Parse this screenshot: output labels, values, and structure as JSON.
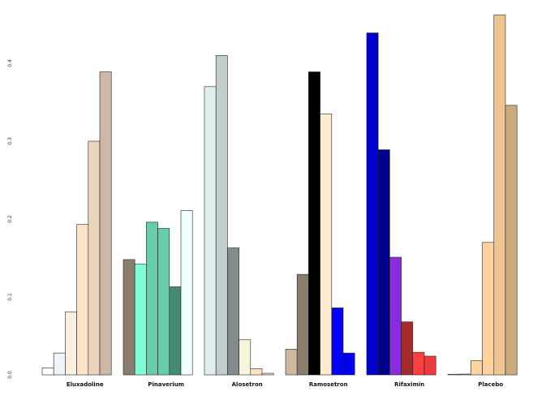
{
  "chart_data": {
    "type": "bar",
    "title": "",
    "xlabel": "",
    "ylabel": "",
    "ylim": [
      0,
      0.46
    ],
    "yticks": [
      0.0,
      0.1,
      0.2,
      0.3,
      0.4
    ],
    "ytick_labels": [
      "0.0",
      "0.1",
      "0.2",
      "0.3",
      "0.4"
    ],
    "legend": "none",
    "grid": false,
    "groups": [
      {
        "name": "Eluxadoline",
        "values": [
          0.009,
          0.028,
          0.081,
          0.193,
          0.3,
          0.389
        ],
        "colors": [
          "#FFFFFF",
          "#EEF4FC",
          "#FBEFDF",
          "#FDE4C8",
          "#ECD4BC",
          "#CDB8A8"
        ]
      },
      {
        "name": "Pinaverium",
        "values": [
          0.148,
          0.142,
          0.196,
          0.188,
          0.113,
          0.211
        ],
        "colors": [
          "#8B7D6E",
          "#7FFFD4",
          "#66CDAA",
          "#66CDAA",
          "#458B74",
          "#F0FFFF"
        ]
      },
      {
        "name": "Alosetron",
        "values": [
          0.37,
          0.41,
          0.163,
          0.045,
          0.008,
          0.002
        ],
        "colors": [
          "#E0EEEE",
          "#C1CDCD",
          "#838B8B",
          "#F5F5DC",
          "#FFE4C4",
          "#FFE4C4"
        ]
      },
      {
        "name": "Ramosetron",
        "values": [
          0.033,
          0.129,
          0.389,
          0.335,
          0.086,
          0.028
        ],
        "colors": [
          "#CDB79E",
          "#8B7D6B",
          "#000000",
          "#FFEBCD",
          "#0000FF",
          "#0000EE"
        ]
      },
      {
        "name": "Rifaximin",
        "values": [
          0.439,
          0.289,
          0.151,
          0.068,
          0.029,
          0.024
        ],
        "colors": [
          "#0000CD",
          "#00008B",
          "#8A2BE2",
          "#A52A2A",
          "#FF4040",
          "#EE3B3B"
        ]
      },
      {
        "name": "Placebo",
        "values": [
          0.0,
          0.001,
          0.018,
          0.17,
          0.462,
          0.346
        ],
        "colors": [
          "#FFFFFF",
          "#DEB887",
          "#FFD39B",
          "#FFD39B",
          "#EEC591",
          "#CDAA7D"
        ]
      }
    ]
  }
}
